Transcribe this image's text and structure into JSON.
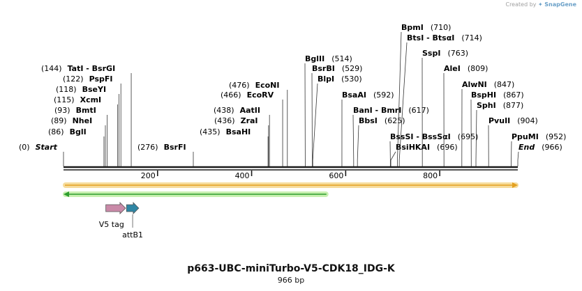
{
  "credit": {
    "prefix": "Created by",
    "brand": "SnapGene"
  },
  "map": {
    "title": "p663-UBC-miniTurbo-V5-CDK18_IDG-K",
    "length_label": "966 bp",
    "sequence_length": 966,
    "ruler_ticks": [
      {
        "value": 200,
        "label": "200"
      },
      {
        "value": 400,
        "label": "400"
      },
      {
        "value": 600,
        "label": "600"
      },
      {
        "value": 800,
        "label": "800"
      }
    ],
    "colors": {
      "ruler": "#1a1a1a",
      "orange_feature": "#e3a020",
      "orange_glow": "#f6dc9c",
      "green_feature": "#2e9e2e",
      "green_glow": "#c8f0b0",
      "v5_tag": "#c98aa8",
      "attb1": "#2f86a4",
      "text": "#000000"
    }
  },
  "chart_data": {
    "type": "sequence-map",
    "length": 966,
    "sites": [
      {
        "name": "Start",
        "pos": 0,
        "bp": "(0)",
        "style": "end"
      },
      {
        "name": "BglI",
        "pos": 86,
        "bp": "(86)"
      },
      {
        "name": "NheI",
        "pos": 89,
        "bp": "(89)"
      },
      {
        "name": "BmtI",
        "pos": 93,
        "bp": "(93)"
      },
      {
        "name": "XcmI",
        "pos": 115,
        "bp": "(115)"
      },
      {
        "name": "BseYI",
        "pos": 118,
        "bp": "(118)"
      },
      {
        "name": "PspFI",
        "pos": 122,
        "bp": "(122)"
      },
      {
        "name": "TatI - BsrGI",
        "pos": 144,
        "bp": "(144)"
      },
      {
        "name": "BsrFI",
        "pos": 276,
        "bp": "(276)"
      },
      {
        "name": "BsaHI",
        "pos": 435,
        "bp": "(435)"
      },
      {
        "name": "ZraI",
        "pos": 436,
        "bp": "(436)"
      },
      {
        "name": "AatII",
        "pos": 438,
        "bp": "(438)"
      },
      {
        "name": "EcoRV",
        "pos": 466,
        "bp": "(466)"
      },
      {
        "name": "EcoNI",
        "pos": 476,
        "bp": "(476)"
      },
      {
        "name": "BglII",
        "pos": 514,
        "bp": "(514)"
      },
      {
        "name": "BsrBI",
        "pos": 529,
        "bp": "(529)"
      },
      {
        "name": "BlpI",
        "pos": 530,
        "bp": "(530)"
      },
      {
        "name": "BsaAI",
        "pos": 592,
        "bp": "(592)"
      },
      {
        "name": "BanI - BmrI",
        "pos": 617,
        "bp": "(617)"
      },
      {
        "name": "BbsI",
        "pos": 625,
        "bp": "(625)"
      },
      {
        "name": "BssSI - BssSαI",
        "pos": 695,
        "bp": "(695)"
      },
      {
        "name": "BsiHKAI",
        "pos": 696,
        "bp": "(696)"
      },
      {
        "name": "BpmI",
        "pos": 710,
        "bp": "(710)"
      },
      {
        "name": "BtsI - BtsαI",
        "pos": 714,
        "bp": "(714)"
      },
      {
        "name": "SspI",
        "pos": 763,
        "bp": "(763)"
      },
      {
        "name": "AleI",
        "pos": 809,
        "bp": "(809)"
      },
      {
        "name": "AlwNI",
        "pos": 847,
        "bp": "(847)"
      },
      {
        "name": "BspHI",
        "pos": 867,
        "bp": "(867)"
      },
      {
        "name": "SphI",
        "pos": 877,
        "bp": "(877)"
      },
      {
        "name": "PvuII",
        "pos": 904,
        "bp": "(904)"
      },
      {
        "name": "PpuMI",
        "pos": 952,
        "bp": "(952)"
      },
      {
        "name": "End",
        "pos": 966,
        "bp": "(966)",
        "style": "end"
      }
    ],
    "features": [
      {
        "name": "",
        "start": 1,
        "end": 966,
        "strand": "+",
        "color": "orange"
      },
      {
        "name": "",
        "start": 1,
        "end": 562,
        "strand": "-",
        "color": "green"
      },
      {
        "name": "V5 tag",
        "start": 91,
        "end": 132,
        "strand": "+",
        "color": "v5"
      },
      {
        "name": "attB1",
        "start": 135,
        "end": 160,
        "strand": "+",
        "color": "attb1"
      }
    ]
  }
}
